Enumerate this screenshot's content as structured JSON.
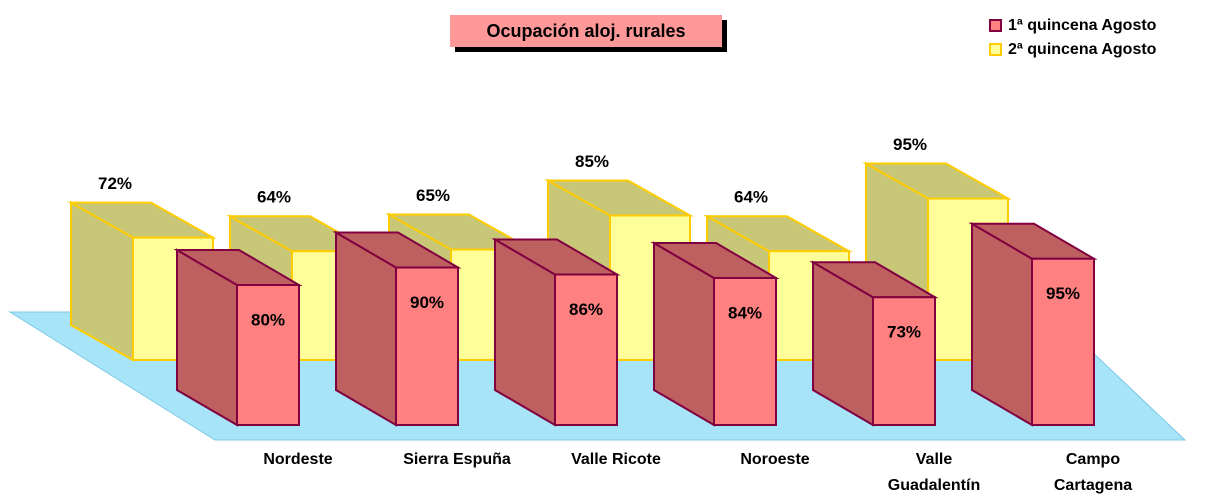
{
  "chart_data": {
    "type": "bar3d",
    "title": "Ocupación aloj. rurales",
    "categories": [
      "Nordeste",
      "Sierra Espuña",
      "Valle Ricote",
      "Noroeste",
      "Valle\nGuadalentín",
      "Campo\nCartagena"
    ],
    "series": [
      {
        "name": "1ª quincena Agosto",
        "color": "#ff8080",
        "values": [
          80,
          90,
          86,
          84,
          73,
          95
        ],
        "value_labels": [
          "80%",
          "90%",
          "86%",
          "84%",
          "73%",
          "95%"
        ]
      },
      {
        "name": "2ª quincena Agosto",
        "color": "#ffff99",
        "values": [
          72,
          64,
          65,
          85,
          64,
          95
        ],
        "value_labels": [
          "72%",
          "64%",
          "65%",
          "85%",
          "64%",
          "95%"
        ]
      }
    ],
    "legend": "top-right"
  }
}
